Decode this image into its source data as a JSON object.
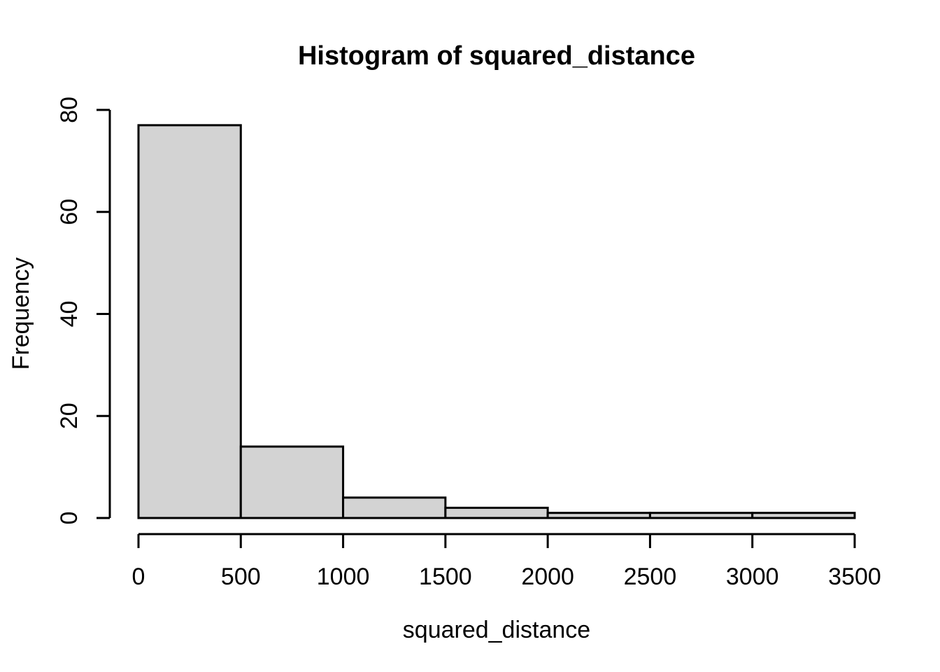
{
  "chart_data": {
    "type": "bar",
    "subtype": "histogram",
    "title": "Histogram of squared_distance",
    "xlabel": "squared_distance",
    "ylabel": "Frequency",
    "bin_edges": [
      0,
      500,
      1000,
      1500,
      2000,
      2500,
      3000,
      3500
    ],
    "counts": [
      77,
      14,
      4,
      2,
      1,
      1,
      1
    ],
    "x_ticks": [
      0,
      500,
      1000,
      1500,
      2000,
      2500,
      3000,
      3500
    ],
    "x_tick_labels": [
      "0",
      "500",
      "1000",
      "1500",
      "2000",
      "2500",
      "3000",
      "3500"
    ],
    "y_ticks": [
      0,
      20,
      40,
      60,
      80
    ],
    "y_tick_labels": [
      "0",
      "20",
      "40",
      "60",
      "80"
    ],
    "xlim": [
      0,
      3500
    ],
    "ylim": [
      0,
      80
    ],
    "grid": false,
    "legend": false,
    "colors": {
      "bar_fill": "#D3D3D3",
      "bar_border": "#000000",
      "axis": "#000000",
      "text": "#000000",
      "background": "#FFFFFF"
    }
  }
}
